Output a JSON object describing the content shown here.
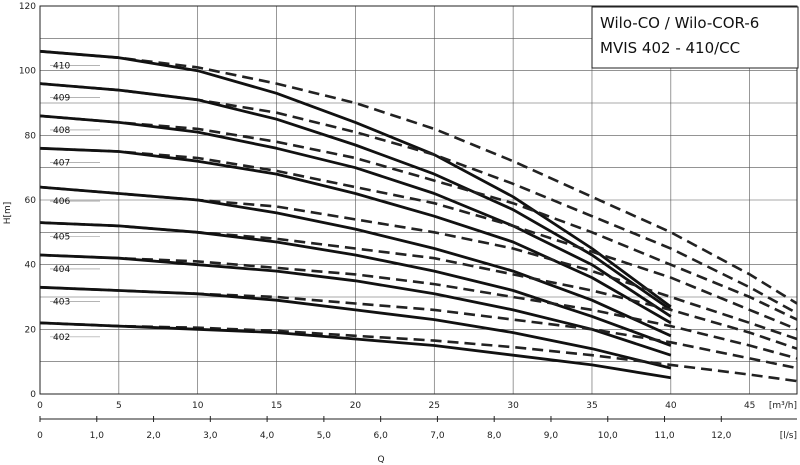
{
  "chart_data": {
    "type": "line",
    "title_lines": [
      "Wilo-CO / Wilo-COR-6",
      "MVIS 402 - 410/CC"
    ],
    "ylabel": "H[m]",
    "xlabel": "Q",
    "x_unit_top": "[m³/h]",
    "x_unit_bottom": "[l/s]",
    "ylim": [
      0,
      120
    ],
    "xlim": [
      0,
      48
    ],
    "y_ticks": [
      "0",
      "20",
      "40",
      "60",
      "80",
      "100",
      "120"
    ],
    "x_ticks_top": [
      "0",
      "5",
      "10",
      "15",
      "20",
      "25",
      "30",
      "35",
      "40",
      "45"
    ],
    "x_ticks_bottom": [
      "0",
      "1,0",
      "2,0",
      "3,0",
      "4,0",
      "5,0",
      "6,0",
      "7,0",
      "8,0",
      "9,0",
      "10,0",
      "11,0",
      "12,0"
    ],
    "grid": true,
    "series": [
      {
        "name": "410",
        "solid": [
          [
            0,
            106
          ],
          [
            5,
            104
          ],
          [
            10,
            100
          ],
          [
            15,
            93
          ],
          [
            20,
            84
          ],
          [
            25,
            74
          ],
          [
            30,
            61
          ],
          [
            35,
            45
          ],
          [
            40,
            27
          ]
        ],
        "dashed": [
          [
            0,
            106
          ],
          [
            5,
            104
          ],
          [
            10,
            101
          ],
          [
            15,
            96
          ],
          [
            20,
            90
          ],
          [
            25,
            82
          ],
          [
            30,
            72
          ],
          [
            35,
            61
          ],
          [
            40,
            50
          ],
          [
            45,
            37
          ],
          [
            48,
            28
          ]
        ]
      },
      {
        "name": "409",
        "solid": [
          [
            0,
            96
          ],
          [
            5,
            94
          ],
          [
            10,
            91
          ],
          [
            15,
            85
          ],
          [
            20,
            77
          ],
          [
            25,
            68
          ],
          [
            30,
            57
          ],
          [
            35,
            43
          ],
          [
            40,
            26
          ]
        ],
        "dashed": [
          [
            0,
            96
          ],
          [
            5,
            94
          ],
          [
            10,
            91
          ],
          [
            15,
            87
          ],
          [
            20,
            81
          ],
          [
            25,
            74
          ],
          [
            30,
            65
          ],
          [
            35,
            55
          ],
          [
            40,
            45
          ],
          [
            45,
            33
          ],
          [
            48,
            25
          ]
        ]
      },
      {
        "name": "408",
        "solid": [
          [
            0,
            86
          ],
          [
            5,
            84
          ],
          [
            10,
            81
          ],
          [
            15,
            76
          ],
          [
            20,
            70
          ],
          [
            25,
            62
          ],
          [
            30,
            52
          ],
          [
            35,
            40
          ],
          [
            40,
            24
          ]
        ],
        "dashed": [
          [
            0,
            86
          ],
          [
            5,
            84
          ],
          [
            10,
            82
          ],
          [
            15,
            78
          ],
          [
            20,
            73
          ],
          [
            25,
            66
          ],
          [
            30,
            59
          ],
          [
            35,
            50
          ],
          [
            40,
            40
          ],
          [
            45,
            30
          ],
          [
            48,
            23
          ]
        ]
      },
      {
        "name": "407",
        "solid": [
          [
            0,
            76
          ],
          [
            5,
            75
          ],
          [
            10,
            72
          ],
          [
            15,
            68
          ],
          [
            20,
            62
          ],
          [
            25,
            55
          ],
          [
            30,
            47
          ],
          [
            35,
            36
          ],
          [
            40,
            22
          ]
        ],
        "dashed": [
          [
            0,
            76
          ],
          [
            5,
            75
          ],
          [
            10,
            73
          ],
          [
            15,
            69
          ],
          [
            20,
            64
          ],
          [
            25,
            59
          ],
          [
            30,
            52
          ],
          [
            35,
            44
          ],
          [
            40,
            36
          ],
          [
            45,
            26
          ],
          [
            48,
            20
          ]
        ]
      },
      {
        "name": "406",
        "solid": [
          [
            0,
            64
          ],
          [
            5,
            62
          ],
          [
            10,
            60
          ],
          [
            15,
            56
          ],
          [
            20,
            51
          ],
          [
            25,
            45
          ],
          [
            30,
            38
          ],
          [
            35,
            29
          ],
          [
            40,
            18
          ]
        ],
        "dashed": [
          [
            0,
            64
          ],
          [
            5,
            62
          ],
          [
            10,
            60
          ],
          [
            15,
            58
          ],
          [
            20,
            54
          ],
          [
            25,
            50
          ],
          [
            30,
            45
          ],
          [
            35,
            38
          ],
          [
            40,
            30
          ],
          [
            45,
            22
          ],
          [
            48,
            17
          ]
        ]
      },
      {
        "name": "405",
        "solid": [
          [
            0,
            53
          ],
          [
            5,
            52
          ],
          [
            10,
            50
          ],
          [
            15,
            47
          ],
          [
            20,
            43
          ],
          [
            25,
            38
          ],
          [
            30,
            32
          ],
          [
            35,
            24
          ],
          [
            40,
            15
          ]
        ],
        "dashed": [
          [
            0,
            53
          ],
          [
            5,
            52
          ],
          [
            10,
            50
          ],
          [
            15,
            48
          ],
          [
            20,
            45
          ],
          [
            25,
            42
          ],
          [
            30,
            37
          ],
          [
            35,
            32
          ],
          [
            40,
            26
          ],
          [
            45,
            19
          ],
          [
            48,
            14
          ]
        ]
      },
      {
        "name": "404",
        "solid": [
          [
            0,
            43
          ],
          [
            5,
            42
          ],
          [
            10,
            40
          ],
          [
            15,
            38
          ],
          [
            20,
            35
          ],
          [
            25,
            31
          ],
          [
            30,
            26
          ],
          [
            35,
            20
          ],
          [
            40,
            12
          ]
        ],
        "dashed": [
          [
            0,
            43
          ],
          [
            5,
            42
          ],
          [
            10,
            41
          ],
          [
            15,
            39
          ],
          [
            20,
            37
          ],
          [
            25,
            34
          ],
          [
            30,
            30
          ],
          [
            35,
            26
          ],
          [
            40,
            21
          ],
          [
            45,
            15
          ],
          [
            48,
            11
          ]
        ]
      },
      {
        "name": "403",
        "solid": [
          [
            0,
            33
          ],
          [
            5,
            32
          ],
          [
            10,
            31
          ],
          [
            15,
            29
          ],
          [
            20,
            26
          ],
          [
            25,
            23
          ],
          [
            30,
            19
          ],
          [
            35,
            14
          ],
          [
            40,
            8
          ]
        ],
        "dashed": [
          [
            0,
            33
          ],
          [
            5,
            32
          ],
          [
            10,
            31
          ],
          [
            15,
            30
          ],
          [
            20,
            28
          ],
          [
            25,
            26
          ],
          [
            30,
            23
          ],
          [
            35,
            20
          ],
          [
            40,
            16
          ],
          [
            45,
            11
          ],
          [
            48,
            8
          ]
        ]
      },
      {
        "name": "402",
        "solid": [
          [
            0,
            22
          ],
          [
            5,
            21
          ],
          [
            10,
            20
          ],
          [
            15,
            19
          ],
          [
            20,
            17
          ],
          [
            25,
            15
          ],
          [
            30,
            12
          ],
          [
            35,
            9
          ],
          [
            40,
            5
          ]
        ],
        "dashed": [
          [
            0,
            22
          ],
          [
            5,
            21
          ],
          [
            10,
            20.5
          ],
          [
            15,
            19.5
          ],
          [
            20,
            18
          ],
          [
            25,
            16.5
          ],
          [
            30,
            14.5
          ],
          [
            35,
            12
          ],
          [
            40,
            9
          ],
          [
            45,
            6
          ],
          [
            48,
            4
          ]
        ]
      }
    ]
  }
}
